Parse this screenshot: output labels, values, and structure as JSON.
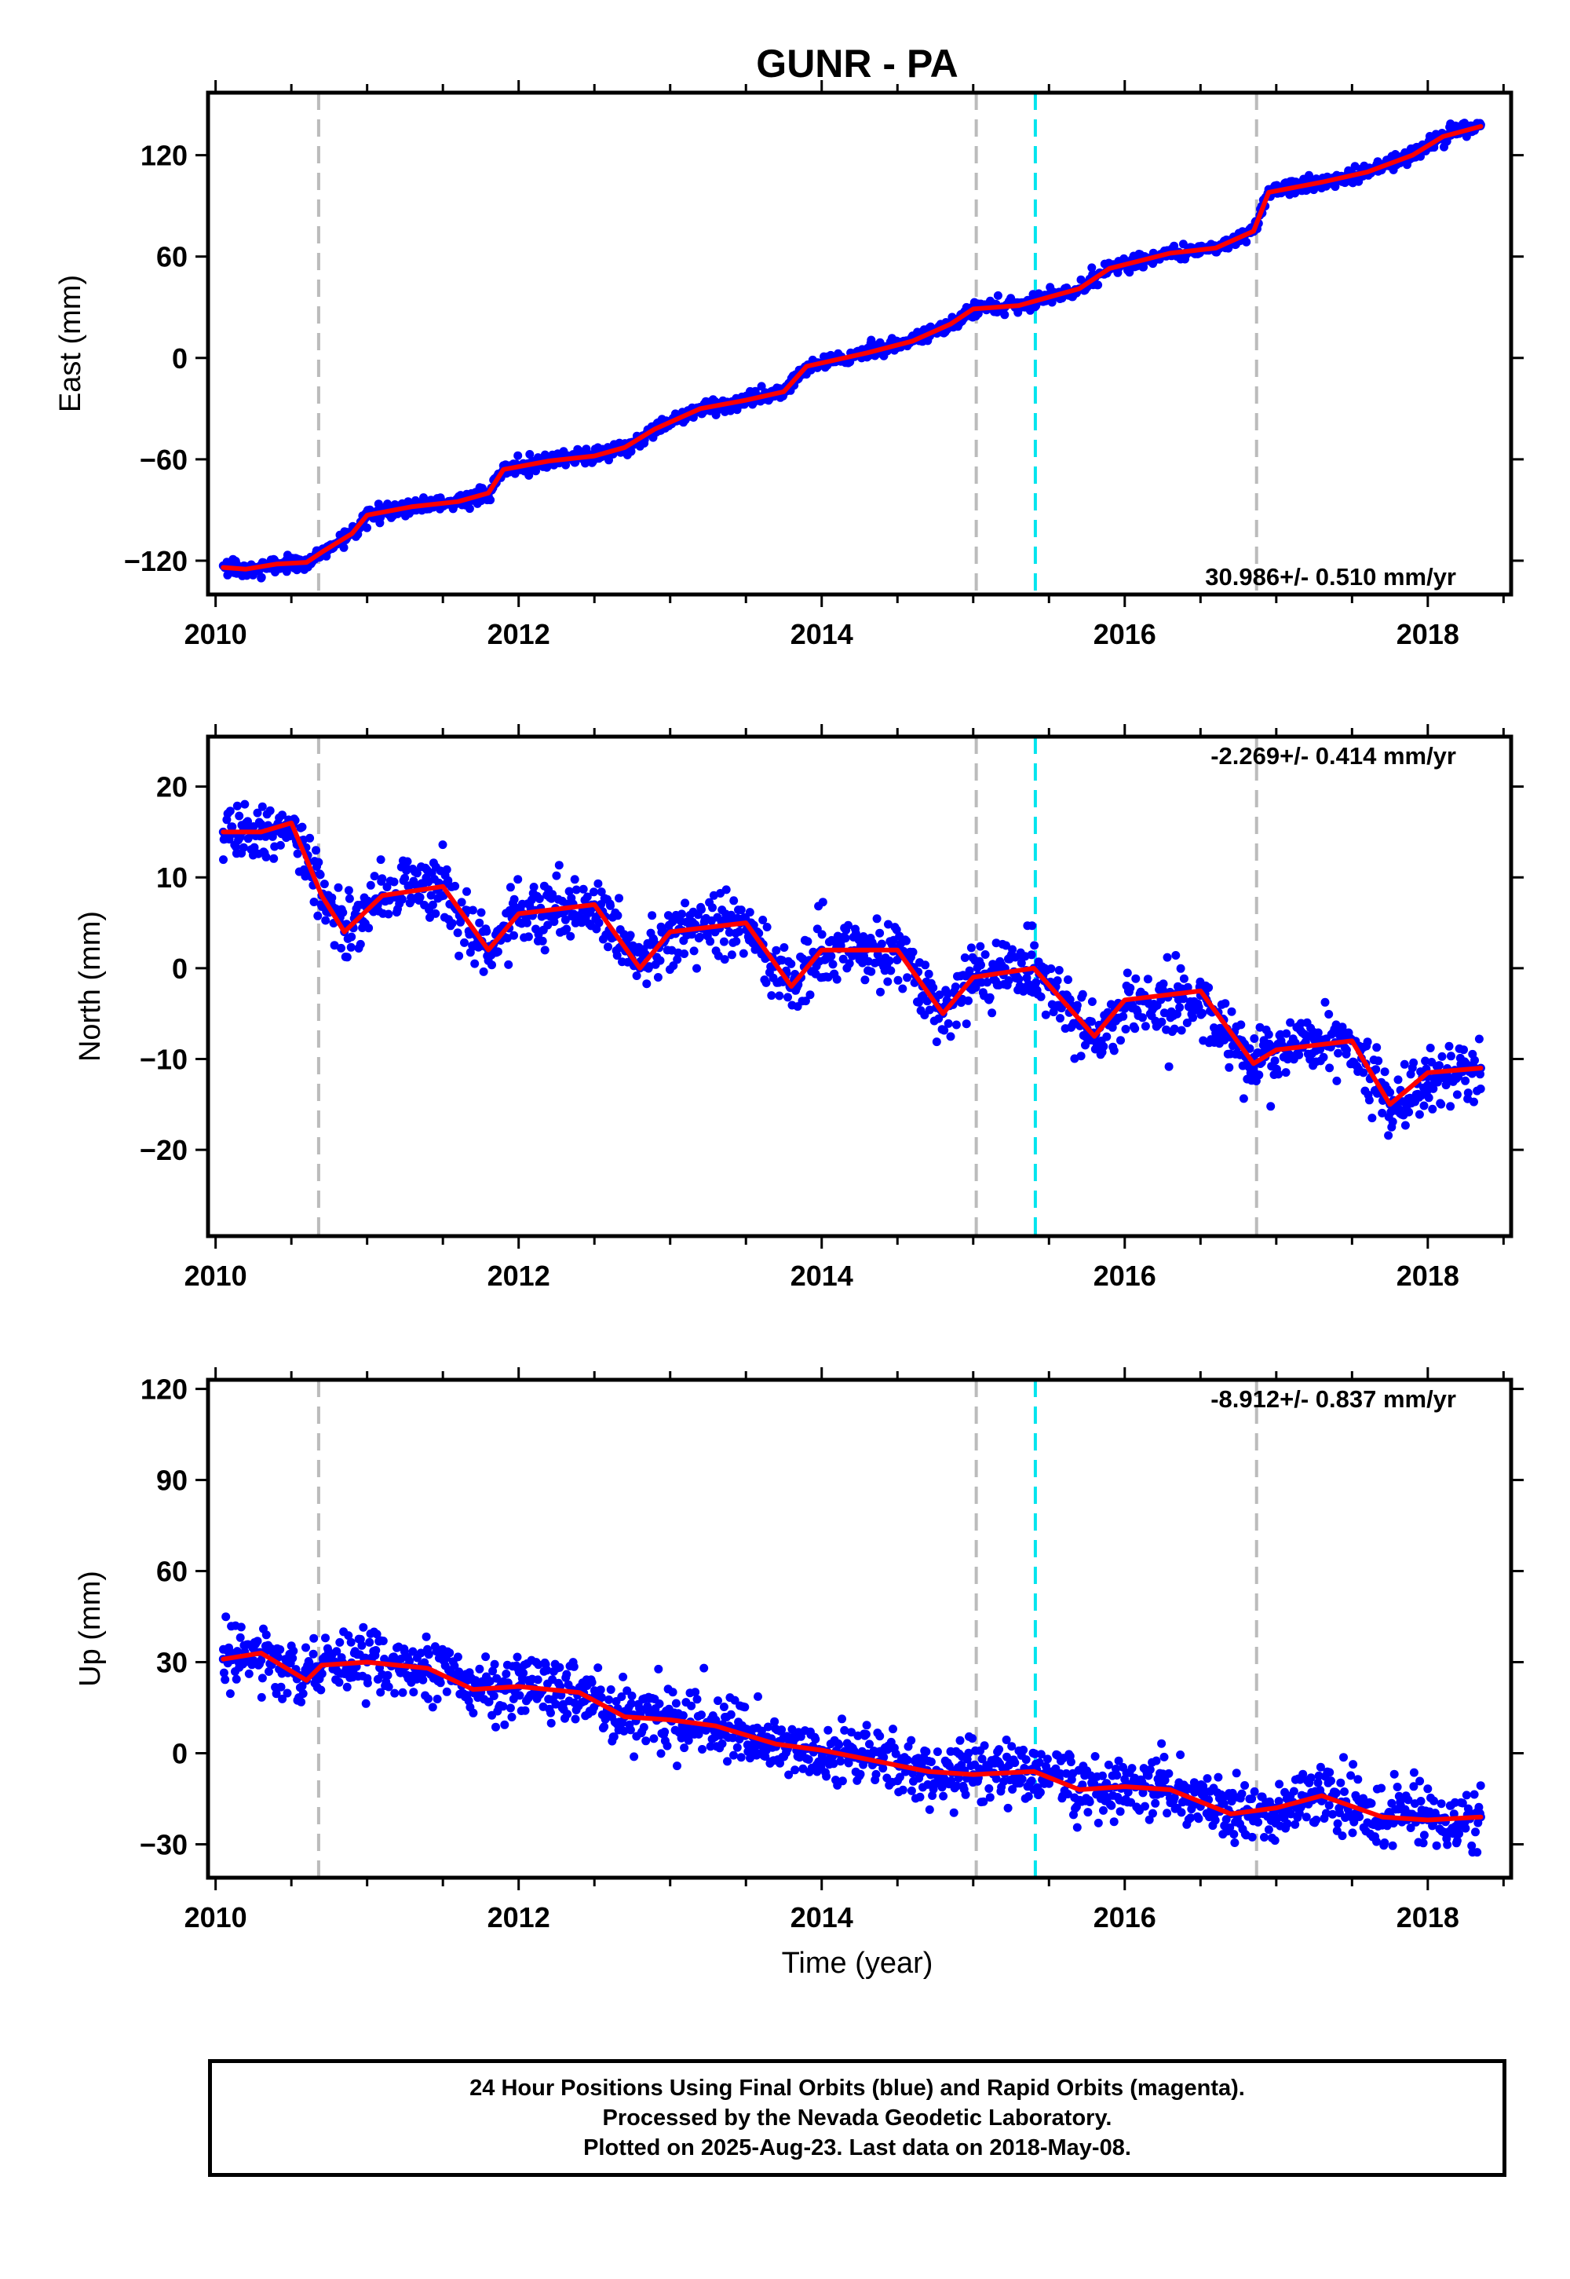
{
  "chart_data": {
    "type": "scatter",
    "title": "GUNR - PA",
    "xlabel": "Time (year)",
    "x_ticks": [
      2010,
      2012,
      2014,
      2016,
      2018
    ],
    "x_range": [
      2009.95,
      2018.55
    ],
    "vertical_lines": {
      "gray_dashed": [
        2010.68,
        2015.02,
        2016.87
      ],
      "cyan_dashed": [
        2015.41
      ]
    },
    "panels": [
      {
        "ylabel": "East (mm)",
        "ylim": [
          -140,
          157
        ],
        "y_ticks": [
          -120,
          -60,
          0,
          60,
          120
        ],
        "rate": "30.986+/- 0.510 mm/yr",
        "rate_position": "bottom-right",
        "series": [
          {
            "kind": "points",
            "color": "#0000ff",
            "x": [
              2010.05,
              2010.2,
              2010.4,
              2010.6,
              2010.7,
              2010.9,
              2011.0,
              2011.3,
              2011.6,
              2011.8,
              2011.9,
              2012.2,
              2012.5,
              2012.7,
              2012.9,
              2013.2,
              2013.5,
              2013.75,
              2013.9,
              2014.3,
              2014.6,
              2014.85,
              2015.0,
              2015.3,
              2015.5,
              2015.7,
              2015.9,
              2016.3,
              2016.6,
              2016.85,
              2016.95,
              2017.3,
              2017.6,
              2017.9,
              2018.1,
              2018.35
            ],
            "y": [
              -123,
              -126,
              -122,
              -121,
              -115,
              -104,
              -93,
              -88,
              -85,
              -80,
              -66,
              -61,
              -58,
              -53,
              -42,
              -30,
              -25,
              -20,
              -5,
              3,
              10,
              20,
              29,
              31,
              36,
              41,
              53,
              62,
              65,
              75,
              98,
              104,
              110,
              120,
              131,
              138
            ]
          },
          {
            "kind": "model",
            "color": "#ff0000",
            "x": [
              2010.05,
              2010.2,
              2010.4,
              2010.6,
              2010.7,
              2010.9,
              2011.0,
              2011.3,
              2011.6,
              2011.8,
              2011.9,
              2012.2,
              2012.5,
              2012.7,
              2012.9,
              2013.2,
              2013.5,
              2013.75,
              2013.9,
              2014.3,
              2014.6,
              2014.85,
              2015.0,
              2015.3,
              2015.5,
              2015.7,
              2015.9,
              2016.3,
              2016.6,
              2016.85,
              2016.95,
              2017.3,
              2017.6,
              2017.9,
              2018.1,
              2018.35
            ],
            "y": [
              -124,
              -125,
              -122,
              -121,
              -115,
              -104,
              -93,
              -88,
              -85,
              -80,
              -66,
              -61,
              -58,
              -53,
              -42,
              -30,
              -25,
              -20,
              -5,
              3,
              10,
              20,
              29,
              31,
              36,
              41,
              53,
              62,
              65,
              75,
              98,
              104,
              110,
              120,
              131,
              137
            ]
          }
        ]
      },
      {
        "ylabel": "North (mm)",
        "ylim": [
          -29.5,
          25.5
        ],
        "y_ticks": [
          -20,
          -10,
          0,
          10,
          20
        ],
        "rate": "-2.269+/- 0.414 mm/yr",
        "rate_position": "top-right",
        "series": [
          {
            "kind": "points",
            "color": "#0000ff",
            "x": [
              2010.05,
              2010.3,
              2010.5,
              2010.7,
              2010.85,
              2011.1,
              2011.5,
              2011.8,
              2012.0,
              2012.5,
              2012.8,
              2013.0,
              2013.5,
              2013.8,
              2014.0,
              2014.5,
              2014.8,
              2015.0,
              2015.4,
              2015.8,
              2016.0,
              2016.5,
              2016.85,
              2017.0,
              2017.5,
              2017.75,
              2018.0,
              2018.35
            ],
            "y": [
              15,
              15,
              16,
              8,
              4,
              8,
              9,
              2,
              6,
              7,
              0,
              4,
              5,
              -2,
              2,
              2,
              -5,
              -1,
              0,
              -8,
              -4,
              -3,
              -11,
              -9,
              -8,
              -15,
              -12,
              -11
            ]
          },
          {
            "kind": "model",
            "color": "#ff0000",
            "x": [
              2010.05,
              2010.3,
              2010.5,
              2010.7,
              2010.85,
              2011.1,
              2011.5,
              2011.8,
              2012.0,
              2012.5,
              2012.8,
              2013.0,
              2013.5,
              2013.8,
              2014.0,
              2014.5,
              2014.8,
              2015.0,
              2015.4,
              2015.8,
              2016.0,
              2016.5,
              2016.85,
              2017.0,
              2017.5,
              2017.75,
              2018.0,
              2018.35
            ],
            "y": [
              15,
              15,
              16,
              8,
              4,
              8,
              9,
              2,
              6,
              7,
              0,
              4,
              5,
              -2,
              2,
              2,
              -5,
              -1,
              0,
              -7.5,
              -3.5,
              -2.5,
              -10.5,
              -9,
              -8,
              -15,
              -11.5,
              -11
            ]
          }
        ]
      },
      {
        "ylabel": "Up (mm)",
        "ylim": [
          -41,
          123
        ],
        "y_ticks": [
          -30,
          0,
          30,
          60,
          90,
          120
        ],
        "rate": "-8.912+/- 0.837 mm/yr",
        "rate_position": "top-right",
        "series": [
          {
            "kind": "points",
            "color": "#0000ff",
            "x": [
              2010.05,
              2010.3,
              2010.6,
              2010.7,
              2011.0,
              2011.4,
              2011.7,
              2012.0,
              2012.4,
              2012.7,
              2013.0,
              2013.3,
              2013.7,
              2014.0,
              2014.3,
              2014.7,
              2015.0,
              2015.4,
              2015.7,
              2016.0,
              2016.3,
              2016.7,
              2017.0,
              2017.3,
              2017.7,
              2018.0,
              2018.35
            ],
            "y": [
              31,
              33,
              24,
              29,
              30,
              28,
              21,
              22,
              20,
              12,
              11,
              9,
              3,
              1,
              -2,
              -6,
              -7,
              -6,
              -12,
              -11,
              -12,
              -20,
              -18,
              -14,
              -21,
              -22,
              -21
            ]
          },
          {
            "kind": "model",
            "color": "#ff0000",
            "x": [
              2010.05,
              2010.3,
              2010.6,
              2010.7,
              2011.0,
              2011.4,
              2011.7,
              2012.0,
              2012.4,
              2012.7,
              2013.0,
              2013.3,
              2013.7,
              2014.0,
              2014.3,
              2014.7,
              2015.0,
              2015.4,
              2015.7,
              2016.0,
              2016.3,
              2016.7,
              2017.0,
              2017.3,
              2017.7,
              2018.0,
              2018.35
            ],
            "y": [
              31,
              33,
              24,
              29,
              30,
              28,
              21,
              22,
              20,
              12,
              11,
              9,
              3,
              1,
              -2,
              -6,
              -7,
              -6,
              -12,
              -11,
              -12,
              -20,
              -18,
              -14,
              -21,
              -22,
              -21
            ]
          }
        ]
      }
    ],
    "caption": [
      "24 Hour Positions Using Final Orbits (blue) and Rapid Orbits (magenta).",
      "Processed by the Nevada Geodetic Laboratory.",
      "Plotted on 2025-Aug-23. Last data on 2018-May-08."
    ]
  }
}
